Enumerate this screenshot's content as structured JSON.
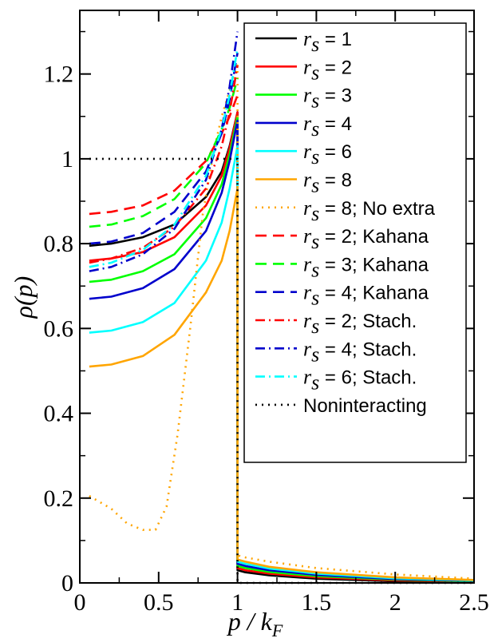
{
  "chart_data": {
    "type": "line",
    "xlabel_main": "p / k",
    "xlabel_sub": "F",
    "ylabel_rho": "ρ",
    "ylabel_arg": "(p)",
    "xlim": [
      0,
      2.5
    ],
    "ylim": [
      0,
      1.35
    ],
    "xticks": [
      {
        "v": 0,
        "label": "0"
      },
      {
        "v": 0.5,
        "label": "0.5"
      },
      {
        "v": 1,
        "label": "1"
      },
      {
        "v": 1.5,
        "label": "1.5"
      },
      {
        "v": 2,
        "label": "2"
      },
      {
        "v": 2.5,
        "label": "2.5"
      }
    ],
    "yticks": [
      {
        "v": 0,
        "label": "0"
      },
      {
        "v": 0.2,
        "label": "0.2"
      },
      {
        "v": 0.4,
        "label": "0.4"
      },
      {
        "v": 0.6,
        "label": "0.6"
      },
      {
        "v": 0.8,
        "label": "0.8"
      },
      {
        "v": 1,
        "label": "1"
      },
      {
        "v": 1.2,
        "label": "1.2"
      }
    ],
    "legend_position": "top-right",
    "series": [
      {
        "name_rs": "r",
        "name_sub": "s",
        "name_rest": " = 1",
        "color": "#000000",
        "dash": "solid",
        "x": [
          0.06,
          0.2,
          0.4,
          0.6,
          0.8,
          0.9,
          0.95,
          1.0,
          1.0,
          1.05,
          1.2,
          1.5,
          2.0,
          2.5
        ],
        "y": [
          0.795,
          0.8,
          0.815,
          0.845,
          0.91,
          0.97,
          1.03,
          1.11,
          0.03,
          0.025,
          0.018,
          0.01,
          0.004,
          0.002
        ]
      },
      {
        "name_rs": "r",
        "name_sub": "s",
        "name_rest": " = 2",
        "color": "#ff0000",
        "dash": "solid",
        "x": [
          0.06,
          0.2,
          0.4,
          0.6,
          0.8,
          0.9,
          0.95,
          1.0,
          1.0,
          1.05,
          1.2,
          1.5,
          2.0,
          2.5
        ],
        "y": [
          0.76,
          0.765,
          0.78,
          0.815,
          0.89,
          0.96,
          1.025,
          1.11,
          0.035,
          0.03,
          0.022,
          0.013,
          0.006,
          0.003
        ]
      },
      {
        "name_rs": "r",
        "name_sub": "s",
        "name_rest": " = 3",
        "color": "#00ff00",
        "dash": "solid",
        "x": [
          0.06,
          0.2,
          0.4,
          0.6,
          0.8,
          0.9,
          0.95,
          1.0,
          1.0,
          1.05,
          1.2,
          1.5,
          2.0,
          2.5
        ],
        "y": [
          0.71,
          0.715,
          0.735,
          0.775,
          0.86,
          0.94,
          1.01,
          1.1,
          0.04,
          0.035,
          0.026,
          0.016,
          0.008,
          0.004
        ]
      },
      {
        "name_rs": "r",
        "name_sub": "s",
        "name_rest": " = 4",
        "color": "#0000cc",
        "dash": "solid",
        "x": [
          0.06,
          0.2,
          0.4,
          0.6,
          0.8,
          0.9,
          0.95,
          1.0,
          1.0,
          1.05,
          1.2,
          1.5,
          2.0,
          2.5
        ],
        "y": [
          0.67,
          0.675,
          0.695,
          0.74,
          0.83,
          0.92,
          0.995,
          1.09,
          0.045,
          0.04,
          0.03,
          0.019,
          0.009,
          0.005
        ]
      },
      {
        "name_rs": "r",
        "name_sub": "s",
        "name_rest": " = 6",
        "color": "#00ffff",
        "dash": "solid",
        "x": [
          0.06,
          0.2,
          0.4,
          0.6,
          0.8,
          0.9,
          0.95,
          1.0,
          1.0,
          1.05,
          1.2,
          1.5,
          2.0,
          2.5
        ],
        "y": [
          0.59,
          0.595,
          0.615,
          0.66,
          0.76,
          0.85,
          0.93,
          1.03,
          0.05,
          0.045,
          0.034,
          0.022,
          0.011,
          0.006
        ]
      },
      {
        "name_rs": "r",
        "name_sub": "s",
        "name_rest": " = 8",
        "color": "#ffa500",
        "dash": "solid",
        "x": [
          0.06,
          0.2,
          0.4,
          0.6,
          0.8,
          0.9,
          0.95,
          1.0,
          1.0,
          1.05,
          1.2,
          1.5,
          2.0,
          2.5
        ],
        "y": [
          0.51,
          0.515,
          0.535,
          0.585,
          0.685,
          0.76,
          0.83,
          0.93,
          0.055,
          0.05,
          0.038,
          0.025,
          0.013,
          0.007
        ]
      },
      {
        "name_rs": "r",
        "name_sub": "s",
        "name_rest": " = 8; No extra",
        "color": "#ffa500",
        "dash": "dot",
        "x": [
          0.06,
          0.2,
          0.3,
          0.4,
          0.48,
          0.55,
          0.62,
          0.7,
          0.78,
          0.85,
          0.9,
          0.95,
          1.0,
          1.0,
          1.05,
          1.2,
          1.5,
          2.0,
          2.5
        ],
        "y": [
          0.205,
          0.175,
          0.14,
          0.125,
          0.125,
          0.18,
          0.35,
          0.6,
          0.87,
          1.02,
          1.1,
          1.16,
          1.22,
          0.065,
          0.06,
          0.05,
          0.035,
          0.02,
          0.01
        ]
      },
      {
        "name_rs": "r",
        "name_sub": "s",
        "name_rest": " = 2; Kahana",
        "color": "#ff0000",
        "dash": "dash",
        "x": [
          0.06,
          0.2,
          0.4,
          0.6,
          0.8,
          0.9,
          0.95,
          1.0
        ],
        "y": [
          0.87,
          0.875,
          0.89,
          0.925,
          0.995,
          1.06,
          1.1,
          1.15
        ]
      },
      {
        "name_rs": "r",
        "name_sub": "s",
        "name_rest": " = 3; Kahana",
        "color": "#00ff00",
        "dash": "dash",
        "x": [
          0.06,
          0.2,
          0.4,
          0.6,
          0.8,
          0.9,
          0.95,
          1.0
        ],
        "y": [
          0.84,
          0.845,
          0.865,
          0.905,
          0.99,
          1.07,
          1.12,
          1.19
        ]
      },
      {
        "name_rs": "r",
        "name_sub": "s",
        "name_rest": " = 4; Kahana",
        "color": "#0000cc",
        "dash": "dash",
        "x": [
          0.06,
          0.2,
          0.4,
          0.6,
          0.8,
          0.9,
          0.95,
          1.0
        ],
        "y": [
          0.8,
          0.805,
          0.825,
          0.875,
          0.97,
          1.06,
          1.14,
          1.25
        ]
      },
      {
        "name_rs": "r",
        "name_sub": "s",
        "name_rest": " = 2; Stach.",
        "color": "#ff0000",
        "dash": "dashdot",
        "x": [
          0.06,
          0.2,
          0.4,
          0.6,
          0.8,
          0.9,
          0.95,
          1.0
        ],
        "y": [
          0.755,
          0.765,
          0.79,
          0.84,
          0.93,
          1.03,
          1.11,
          1.22
        ]
      },
      {
        "name_rs": "r",
        "name_sub": "s",
        "name_rest": " = 4; Stach.",
        "color": "#0000cc",
        "dash": "dashdot",
        "x": [
          0.06,
          0.2,
          0.4,
          0.6,
          0.8,
          0.9,
          0.95,
          1.0
        ],
        "y": [
          0.735,
          0.745,
          0.775,
          0.835,
          0.95,
          1.07,
          1.17,
          1.3
        ]
      },
      {
        "name_rs": "r",
        "name_sub": "s",
        "name_rest": " = 6; Stach.",
        "color": "#00ffff",
        "dash": "dashdot",
        "x": [
          0.06,
          0.2,
          0.4,
          0.6,
          0.8,
          0.9,
          0.95,
          1.0
        ],
        "y": [
          0.745,
          0.755,
          0.785,
          0.845,
          0.96,
          1.07,
          1.15,
          1.26
        ]
      },
      {
        "name_rs": "",
        "name_sub": "",
        "name_rest": "Noninteracting",
        "color": "#000000",
        "dash": "dot",
        "x": [
          0.06,
          1.0,
          1.0,
          2.5
        ],
        "y": [
          1.0,
          1.0,
          0.0,
          0.0
        ]
      }
    ]
  }
}
